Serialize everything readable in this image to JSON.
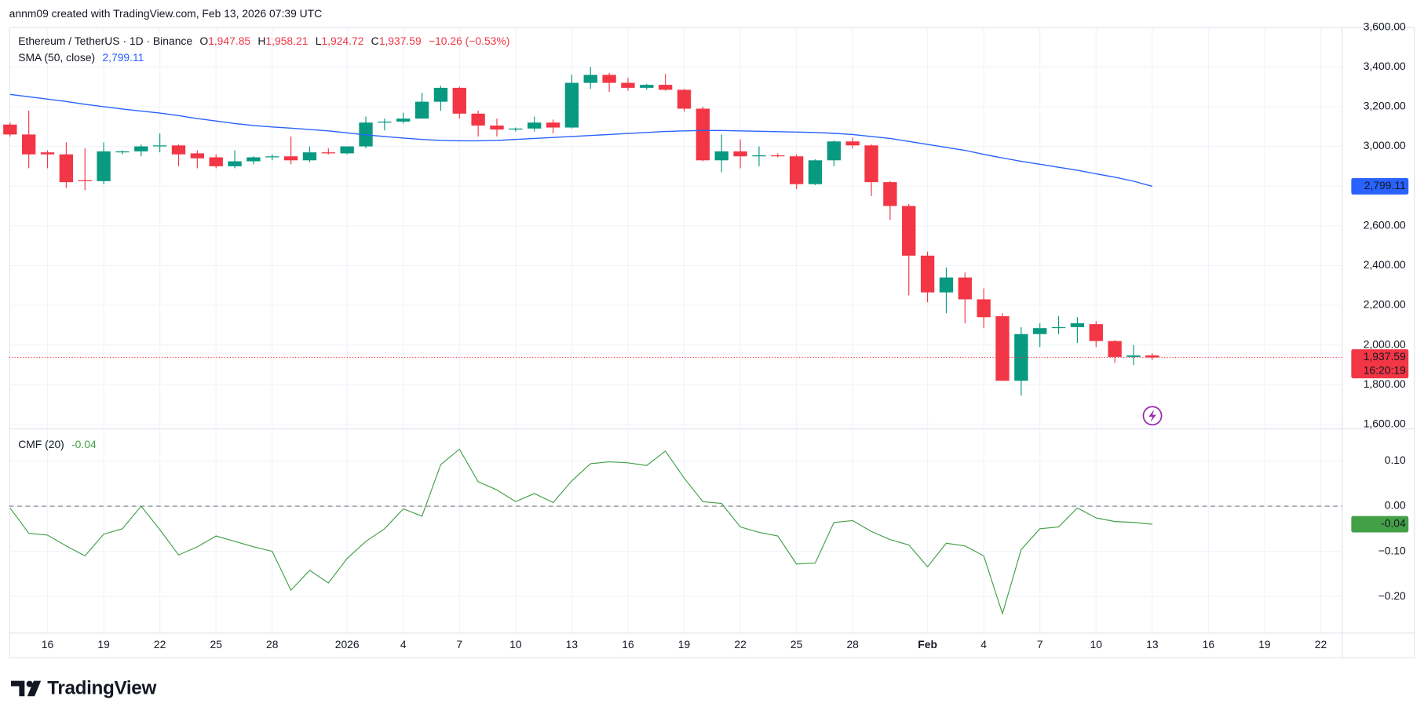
{
  "header": {
    "attribution": "annm09 created with TradingView.com, Feb 13, 2026 07:39 UTC"
  },
  "footer": {
    "logo": "TradingView"
  },
  "chart_data": [
    {
      "type": "candlestick",
      "legend": {
        "symbol": "Ethereum / TetherUS · 1D · Binance",
        "ohlc": [
          {
            "key": "O",
            "label": "1,947.85"
          },
          {
            "key": "H",
            "label": "1,958.21"
          },
          {
            "key": "L",
            "label": "1,924.72"
          },
          {
            "key": "C",
            "label": "1,937.59"
          }
        ],
        "change": "−10.26 (−0.53%)"
      },
      "categories": [
        null,
        null,
        "16",
        null,
        null,
        "19",
        null,
        null,
        "22",
        null,
        null,
        "25",
        null,
        null,
        "28",
        null,
        null,
        null,
        "2026",
        null,
        null,
        "4",
        null,
        null,
        "7",
        null,
        null,
        "10",
        null,
        null,
        "13",
        null,
        null,
        "16",
        null,
        null,
        "19",
        null,
        null,
        "22",
        null,
        null,
        "25",
        null,
        null,
        "28",
        null,
        null,
        null,
        "Feb",
        null,
        null,
        "4",
        null,
        null,
        "7",
        null,
        null,
        "10",
        null,
        null,
        "13",
        null,
        null,
        "16",
        null,
        null,
        "19",
        null,
        null,
        "22",
        null
      ],
      "open": [
        3110,
        3060,
        2970,
        2960,
        2830,
        2825,
        2970,
        2975,
        3000,
        3005,
        2965,
        2945,
        2900,
        2925,
        2945,
        2950,
        2930,
        2970,
        2965,
        3000,
        3120,
        3125,
        3140,
        3225,
        3295,
        3165,
        3105,
        3085,
        3090,
        3120,
        3095,
        3320,
        3360,
        3320,
        3295,
        3310,
        3285,
        3190,
        2930,
        2975,
        2950,
        2955,
        2950,
        2810,
        2930,
        3025,
        3005,
        2820,
        2700,
        2450,
        2265,
        2340,
        2230,
        2145,
        1820,
        2055,
        2085,
        2090,
        2105,
        2020,
        1940,
        1947.85,
        null,
        null,
        null,
        null,
        null,
        null,
        null,
        null,
        null,
        null
      ],
      "high": [
        3120,
        3180,
        2980,
        3020,
        2990,
        3020,
        2980,
        3010,
        3065,
        3010,
        2980,
        2960,
        2980,
        2950,
        2960,
        3050,
        3000,
        2990,
        3000,
        3150,
        3140,
        3170,
        3270,
        3305,
        3300,
        3180,
        3140,
        3095,
        3150,
        3135,
        3360,
        3400,
        3370,
        3345,
        3315,
        3365,
        3290,
        3200,
        3060,
        3035,
        3000,
        2965,
        2960,
        2935,
        3030,
        3045,
        3010,
        2825,
        2710,
        2470,
        2390,
        2365,
        2285,
        2160,
        2090,
        2110,
        2145,
        2140,
        2120,
        2025,
        2000,
        1958.21,
        null,
        null,
        null,
        null,
        null,
        null,
        null,
        null,
        null,
        null
      ],
      "low": [
        3050,
        2890,
        2890,
        2790,
        2780,
        2810,
        2960,
        2950,
        2970,
        2900,
        2890,
        2890,
        2890,
        2910,
        2930,
        2910,
        2920,
        2960,
        2960,
        2990,
        3080,
        3115,
        3140,
        3180,
        3140,
        3050,
        3050,
        3075,
        3075,
        3065,
        3090,
        3290,
        3275,
        3280,
        3285,
        3280,
        3175,
        2925,
        2870,
        2890,
        2900,
        2945,
        2785,
        2805,
        2900,
        2990,
        2750,
        2630,
        2250,
        2215,
        2160,
        2110,
        2085,
        1820,
        1745,
        1990,
        2055,
        2010,
        1990,
        1910,
        1900,
        1924.72,
        null,
        null,
        null,
        null,
        null,
        null,
        null,
        null,
        null,
        null
      ],
      "close": [
        3060,
        2960,
        2960,
        2820,
        2825,
        2975,
        2975,
        3000,
        3005,
        2960,
        2940,
        2900,
        2925,
        2945,
        2950,
        2930,
        2970,
        2965,
        3000,
        3120,
        3125,
        3140,
        3225,
        3295,
        3165,
        3105,
        3085,
        3090,
        3120,
        3095,
        3320,
        3360,
        3320,
        3295,
        3310,
        3285,
        3190,
        2930,
        2975,
        2950,
        2955,
        2950,
        2810,
        2930,
        3025,
        3005,
        2820,
        2700,
        2450,
        2265,
        2340,
        2230,
        2140,
        1820,
        2055,
        2085,
        2090,
        2110,
        2020,
        1940,
        1947.85,
        1937.59,
        null,
        null,
        null,
        null,
        null,
        null,
        null,
        null,
        null,
        null
      ],
      "up_color": "#089981",
      "down_color": "#f23645",
      "last_price_label": "1,937.59",
      "countdown": "16:20:19",
      "sma": {
        "name": "SMA (50, close)",
        "color": "#2962ff",
        "last_label": "2,799.11",
        "values": [
          3262,
          3250,
          3238,
          3226,
          3212,
          3200,
          3188,
          3178,
          3168,
          3155,
          3140,
          3128,
          3115,
          3105,
          3098,
          3092,
          3085,
          3078,
          3068,
          3058,
          3050,
          3042,
          3035,
          3030,
          3028,
          3028,
          3030,
          3035,
          3040,
          3045,
          3050,
          3055,
          3060,
          3065,
          3070,
          3075,
          3078,
          3080,
          3080,
          3078,
          3076,
          3074,
          3072,
          3070,
          3066,
          3060,
          3050,
          3040,
          3025,
          3010,
          2995,
          2980,
          2960,
          2942,
          2925,
          2910,
          2895,
          2880,
          2862,
          2845,
          2825,
          2799.11,
          null,
          null,
          null,
          null,
          null,
          null,
          null,
          null,
          null,
          null
        ]
      },
      "ylim": [
        1580,
        3600
      ],
      "yticks": [
        {
          "value": 1600,
          "label": "1,600.00"
        },
        {
          "value": 1800,
          "label": "1,800.00"
        },
        {
          "value": 2000,
          "label": "2,000.00"
        },
        {
          "value": 2200,
          "label": "2,200.00"
        },
        {
          "value": 2400,
          "label": "2,400.00"
        },
        {
          "value": 2600,
          "label": "2,600.00"
        },
        {
          "value": 2800,
          "label": "2,800.00"
        },
        {
          "value": 3000,
          "label": "3,000.00"
        },
        {
          "value": 3200,
          "label": "3,200.00"
        },
        {
          "value": 3400,
          "label": "3,400.00"
        },
        {
          "value": 3600,
          "label": "3,600.00"
        }
      ],
      "grid": true
    },
    {
      "type": "line",
      "name": "CMF (20)",
      "color": "#43a047",
      "values": [
        -0.004,
        -0.06,
        -0.064,
        -0.088,
        -0.11,
        -0.062,
        -0.05,
        0.0,
        -0.052,
        -0.108,
        -0.09,
        -0.066,
        -0.078,
        -0.09,
        -0.1,
        -0.186,
        -0.142,
        -0.17,
        -0.116,
        -0.078,
        -0.05,
        -0.006,
        -0.022,
        0.092,
        0.126,
        0.054,
        0.036,
        0.01,
        0.028,
        0.008,
        0.056,
        0.094,
        0.098,
        0.096,
        0.09,
        0.122,
        0.062,
        0.01,
        0.006,
        -0.046,
        -0.058,
        -0.066,
        -0.128,
        -0.126,
        -0.036,
        -0.032,
        -0.056,
        -0.074,
        -0.086,
        -0.134,
        -0.082,
        -0.088,
        -0.11,
        -0.238,
        -0.096,
        -0.05,
        -0.046,
        -0.004,
        -0.026,
        -0.034,
        -0.036,
        -0.04,
        null,
        null,
        null,
        null,
        null,
        null,
        null,
        null,
        null,
        null
      ],
      "hline": 0,
      "ylim": [
        -0.28,
        0.17
      ],
      "yticks": [
        {
          "value": -0.2,
          "label": "−0.20"
        },
        {
          "value": -0.1,
          "label": "−0.10"
        },
        {
          "value": 0,
          "label": "0.00"
        },
        {
          "value": 0.1,
          "label": "0.10"
        }
      ],
      "grid": true
    }
  ]
}
